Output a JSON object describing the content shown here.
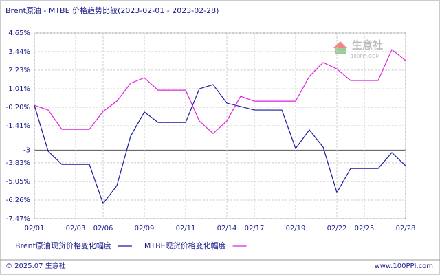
{
  "chart_data": {
    "type": "line",
    "title": "Brent原油 - MTBE 价格趋势比较(2023-02-01 - 2023-02-28)",
    "categories": [
      "02/01",
      null,
      null,
      "02/03",
      null,
      "02/06",
      null,
      null,
      "02/09",
      null,
      null,
      "02/11",
      null,
      null,
      "02/14",
      null,
      "02/17",
      null,
      null,
      "02/19",
      null,
      null,
      "02/22",
      null,
      "02/25",
      null,
      null,
      "02/28"
    ],
    "series": [
      {
        "name": "Brent原油现货价格变化幅度",
        "color": "#1a1aa0",
        "values": [
          -0.07,
          -3.07,
          -3.93,
          -3.93,
          -3.93,
          -6.49,
          -5.32,
          -2.09,
          -0.51,
          -1.19,
          -1.19,
          -1.19,
          1.01,
          1.28,
          0.07,
          -0.15,
          -0.38,
          -0.38,
          -0.38,
          -2.89,
          -1.68,
          -2.8,
          -5.77,
          -4.2,
          -4.2,
          -4.2,
          -3.16,
          -4.02
        ]
      },
      {
        "name": "MTBE现货价格变化幅度",
        "color": "#e020e0",
        "values": [
          -0.07,
          -0.38,
          -1.64,
          -1.64,
          -1.64,
          -0.47,
          0.2,
          1.37,
          1.73,
          0.92,
          0.92,
          0.92,
          -1.1,
          -1.91,
          -1.1,
          0.52,
          0.2,
          0.2,
          0.2,
          0.2,
          1.82,
          2.72,
          2.31,
          1.55,
          1.55,
          1.55,
          3.57,
          2.85
        ]
      }
    ],
    "ylim": [
      -7.47,
      4.65
    ],
    "yticks": [
      {
        "value": 4.65,
        "label": "4.65%"
      },
      {
        "value": 3.44,
        "label": "3.44%"
      },
      {
        "value": 2.23,
        "label": "2.23%"
      },
      {
        "value": 1.01,
        "label": "1.01%"
      },
      {
        "value": -0.2,
        "label": "-0.20%"
      },
      {
        "value": -1.41,
        "label": "-1.41%"
      },
      -3,
      {
        "value": -3.83,
        "label": "-3.83%"
      },
      {
        "value": -5.05,
        "label": "-5.05%"
      },
      {
        "value": -6.26,
        "label": "-6.26%"
      },
      {
        "value": -7.47,
        "label": "-7.47%"
      }
    ],
    "grid": true,
    "watermark": "生意社",
    "watermark_sub": "100PPI.COM",
    "footer_left": "© 2025.07 生意社",
    "footer_right": "www.100PPI.com"
  }
}
